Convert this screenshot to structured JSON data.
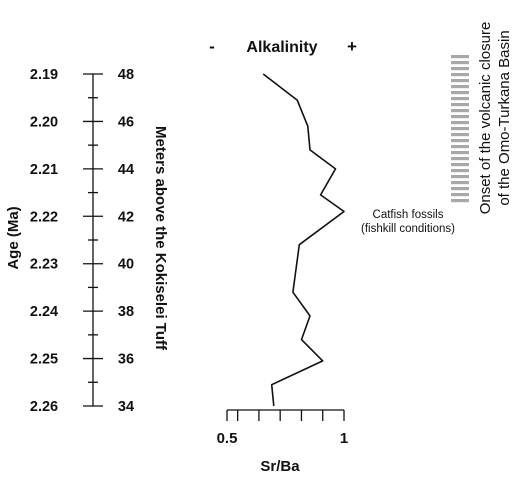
{
  "chart_data": {
    "type": "line",
    "orientation": "vertical-profile",
    "title": "Alkalinity",
    "title_left_marker": "-",
    "title_right_marker": "+",
    "xlabel": "Sr/Ba",
    "x_ticks": [
      "0.5",
      "1"
    ],
    "xlim": [
      0.45,
      1.0
    ],
    "x_minor_step": 0.1,
    "age_axis": {
      "label": "Age (Ma)",
      "ticks": [
        "2.19",
        "2.20",
        "2.21",
        "2.22",
        "2.23",
        "2.24",
        "2.25",
        "2.26"
      ]
    },
    "depth_axis": {
      "label": "Meters above the Kokiselei Tuff",
      "ticks": [
        "48",
        "46",
        "44",
        "42",
        "40",
        "38",
        "36",
        "34"
      ],
      "range": [
        34,
        48
      ],
      "minor_step": 1
    },
    "series": [
      {
        "points": [
          {
            "sr_ba": 0.62,
            "meters": 48.0
          },
          {
            "sr_ba": 0.78,
            "meters": 46.9
          },
          {
            "sr_ba": 0.83,
            "meters": 45.8
          },
          {
            "sr_ba": 0.84,
            "meters": 44.8
          },
          {
            "sr_ba": 0.96,
            "meters": 44.0
          },
          {
            "sr_ba": 0.89,
            "meters": 42.9
          },
          {
            "sr_ba": 1.0,
            "meters": 42.2
          },
          {
            "sr_ba": 0.79,
            "meters": 40.8
          },
          {
            "sr_ba": 0.76,
            "meters": 38.8
          },
          {
            "sr_ba": 0.84,
            "meters": 37.8
          },
          {
            "sr_ba": 0.8,
            "meters": 36.8
          },
          {
            "sr_ba": 0.9,
            "meters": 35.9
          },
          {
            "sr_ba": 0.66,
            "meters": 34.9
          },
          {
            "sr_ba": 0.67,
            "meters": 34.0
          }
        ]
      }
    ],
    "annotations": [
      {
        "text_lines": [
          "Catfish fossils",
          "(fishkill conditions)"
        ],
        "meters": 42.2
      },
      {
        "text_lines": [
          "Onset of the volcanic closure",
          "of the Omo-Turkana Basin"
        ],
        "meters_top": 48.8,
        "meters_bottom": 42.6,
        "style": "dashed-gray-bar"
      }
    ]
  }
}
